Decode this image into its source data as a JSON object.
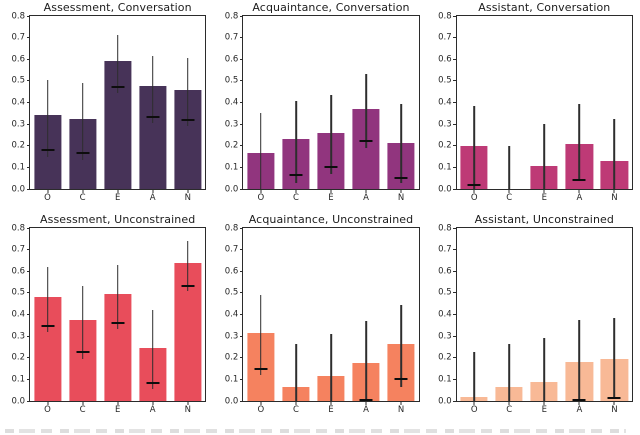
{
  "figure": {
    "background": "#ffffff",
    "axis_color": "#2b2b2b",
    "errorbar_color": "#2e2e2e",
    "marker_color": "#0d0d0d",
    "caption_cropped": true
  },
  "chart_data": [
    {
      "type": "bar",
      "title": "Assessment, Conversation",
      "categories": [
        "O",
        "C",
        "E",
        "A",
        "N"
      ],
      "values": [
        0.34,
        0.325,
        0.59,
        0.475,
        0.46
      ],
      "error_low": [
        0.15,
        0.135,
        0.445,
        0.305,
        0.29
      ],
      "error_high": [
        0.505,
        0.49,
        0.71,
        0.615,
        0.605
      ],
      "marker": [
        0.18,
        0.165,
        0.47,
        0.335,
        0.32
      ],
      "bar_color": "#473358",
      "ylim": [
        0.0,
        0.8
      ],
      "yticks": [
        "0.0",
        "0.1",
        "0.2",
        "0.3",
        "0.4",
        "0.5",
        "0.6",
        "0.7",
        "0.8"
      ],
      "grid": false,
      "legend": null
    },
    {
      "type": "bar",
      "title": "Acquaintance, Conversation",
      "categories": [
        "O",
        "C",
        "E",
        "A",
        "N"
      ],
      "values": [
        0.165,
        0.23,
        0.26,
        0.37,
        0.215
      ],
      "error_low": [
        0.0,
        0.03,
        0.07,
        0.19,
        0.03
      ],
      "error_high": [
        0.35,
        0.405,
        0.435,
        0.53,
        0.395
      ],
      "marker": [
        null,
        0.065,
        0.1,
        0.22,
        0.05
      ],
      "bar_color": "#91357E",
      "ylim": [
        0.0,
        0.8
      ],
      "yticks": [
        "0.0",
        "0.1",
        "0.2",
        "0.3",
        "0.4",
        "0.5",
        "0.6",
        "0.7",
        "0.8"
      ],
      "grid": false,
      "legend": null
    },
    {
      "type": "bar",
      "title": "Assistant, Conversation",
      "categories": [
        "O",
        "C",
        "E",
        "A",
        "N"
      ],
      "values": [
        0.2,
        0.0,
        0.105,
        0.21,
        0.13
      ],
      "error_low": [
        0.0,
        0.0,
        0.0,
        0.035,
        0.0
      ],
      "error_high": [
        0.385,
        0.2,
        0.3,
        0.395,
        0.325
      ],
      "marker": [
        0.02,
        null,
        null,
        0.04,
        null
      ],
      "bar_color": "#BE3A76",
      "ylim": [
        0.0,
        0.8
      ],
      "yticks": [
        "0.0",
        "0.1",
        "0.2",
        "0.3",
        "0.4",
        "0.5",
        "0.6",
        "0.7",
        "0.8"
      ],
      "grid": false,
      "legend": null
    },
    {
      "type": "bar",
      "title": "Assessment, Unconstrained",
      "categories": [
        "O",
        "C",
        "E",
        "A",
        "N"
      ],
      "values": [
        0.48,
        0.375,
        0.495,
        0.245,
        0.64
      ],
      "error_low": [
        0.32,
        0.195,
        0.335,
        0.055,
        0.51
      ],
      "error_high": [
        0.62,
        0.53,
        0.63,
        0.42,
        0.74
      ],
      "marker": [
        0.345,
        0.225,
        0.36,
        0.085,
        0.53
      ],
      "bar_color": "#E84D5B",
      "ylim": [
        0.0,
        0.8
      ],
      "yticks": [
        "0.0",
        "0.1",
        "0.2",
        "0.3",
        "0.4",
        "0.5",
        "0.6",
        "0.7",
        "0.8"
      ],
      "grid": false,
      "legend": null
    },
    {
      "type": "bar",
      "title": "Acquaintance, Unconstrained",
      "categories": [
        "O",
        "C",
        "E",
        "A",
        "N"
      ],
      "values": [
        0.315,
        0.065,
        0.115,
        0.175,
        0.265
      ],
      "error_low": [
        0.12,
        0.0,
        0.0,
        0.0,
        0.065
      ],
      "error_high": [
        0.49,
        0.265,
        0.31,
        0.37,
        0.445
      ],
      "marker": [
        0.15,
        null,
        null,
        0.005,
        0.1
      ],
      "bar_color": "#F5825F",
      "ylim": [
        0.0,
        0.8
      ],
      "yticks": [
        "0.0",
        "0.1",
        "0.2",
        "0.3",
        "0.4",
        "0.5",
        "0.6",
        "0.7",
        "0.8"
      ],
      "grid": false,
      "legend": null
    },
    {
      "type": "bar",
      "title": "Assistant, Unconstrained",
      "categories": [
        "O",
        "C",
        "E",
        "A",
        "N"
      ],
      "values": [
        0.02,
        0.065,
        0.09,
        0.18,
        0.195
      ],
      "error_low": [
        0.0,
        0.0,
        0.0,
        0.005,
        0.015
      ],
      "error_high": [
        0.225,
        0.265,
        0.29,
        0.375,
        0.385
      ],
      "marker": [
        null,
        null,
        null,
        0.005,
        0.015
      ],
      "bar_color": "#F8B996",
      "ylim": [
        0.0,
        0.8
      ],
      "yticks": [
        "0.0",
        "0.1",
        "0.2",
        "0.3",
        "0.4",
        "0.5",
        "0.6",
        "0.7",
        "0.8"
      ],
      "grid": false,
      "legend": null
    }
  ]
}
